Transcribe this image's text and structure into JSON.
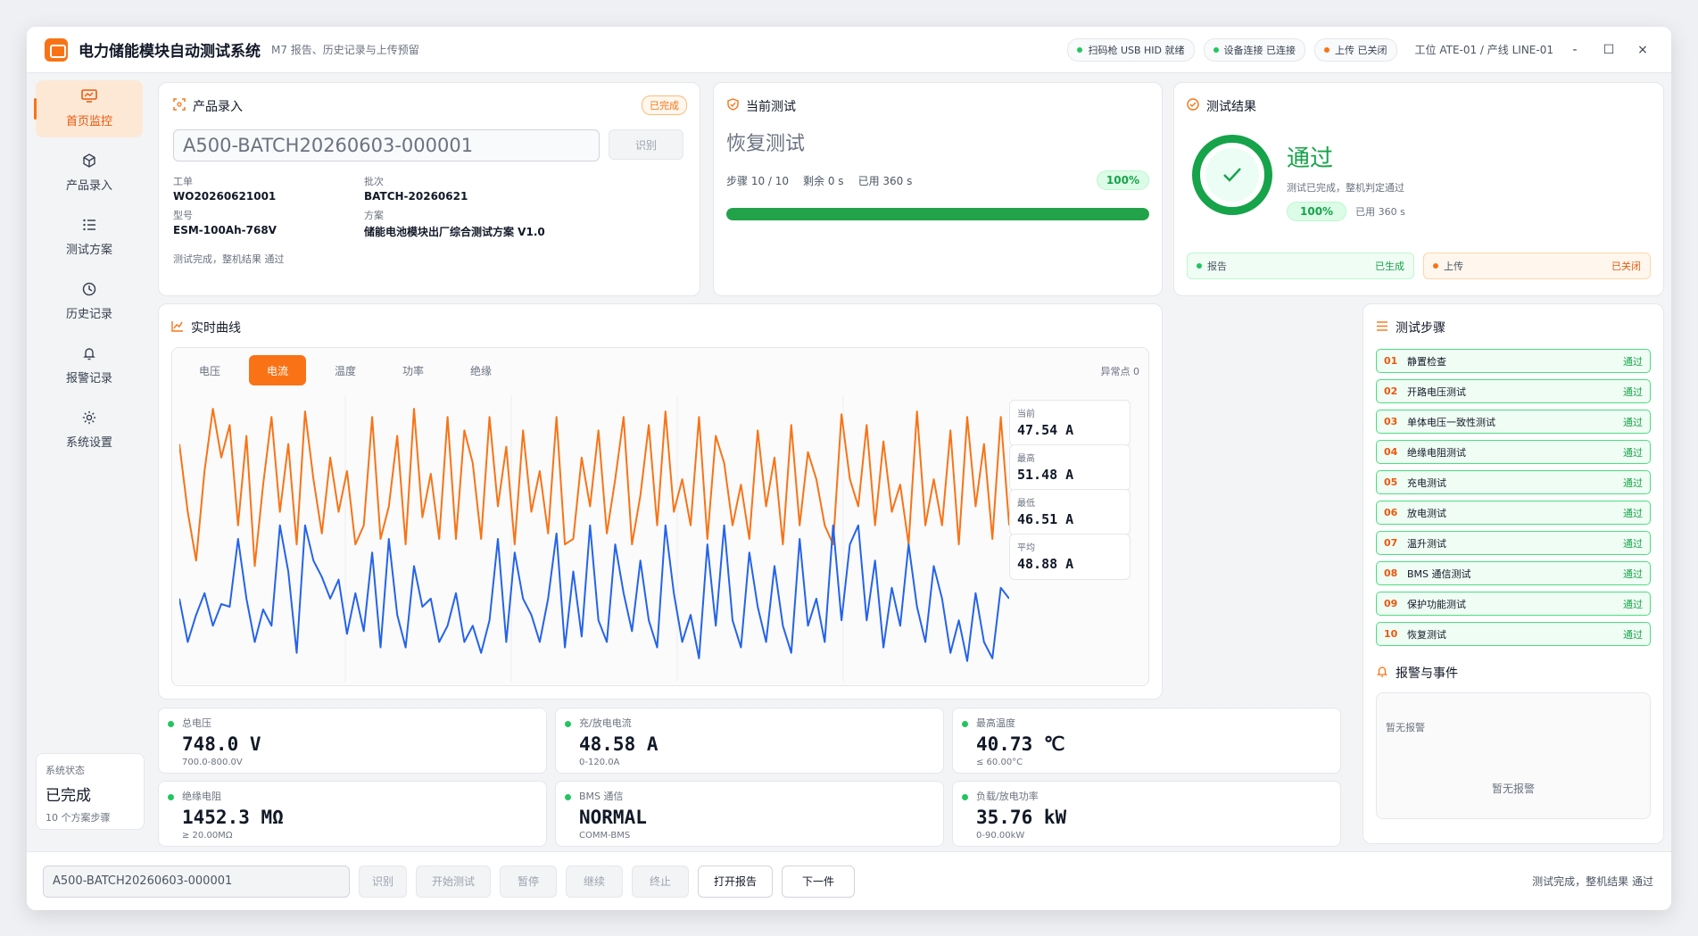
{
  "app": {
    "title": "电力储能模块自动测试系统",
    "subtitle": "M7 报告、历史记录与上传预留",
    "status_pills": [
      {
        "label": "扫码枪 USB HID 就绪",
        "color": "#22c55e"
      },
      {
        "label": "设备连接 已连接",
        "color": "#22c55e"
      },
      {
        "label": "上传 已关闭",
        "color": "#f97316"
      }
    ],
    "station": "工位 ATE-01 / 产线 LINE-01",
    "window_buttons": [
      "-",
      "☐",
      "×"
    ]
  },
  "sidebar": {
    "items": [
      {
        "label": "首页监控",
        "icon": "monitor-icon",
        "active": true
      },
      {
        "label": "产品录入",
        "icon": "cube-icon",
        "active": false
      },
      {
        "label": "测试方案",
        "icon": "list-icon",
        "active": false
      },
      {
        "label": "历史记录",
        "icon": "clock-icon",
        "active": false
      },
      {
        "label": "报警记录",
        "icon": "bell-icon",
        "active": false
      },
      {
        "label": "系统设置",
        "icon": "gear-icon",
        "active": false
      }
    ],
    "status": {
      "label": "系统状态",
      "value": "已完成",
      "sub": "10 个方案步骤"
    }
  },
  "product": {
    "title": "产品录入",
    "badge": "已完成",
    "barcode": "A500-BATCH20260603-000001",
    "identify_label": "识别",
    "fields": [
      {
        "key": "工单",
        "value": "WO20260621001"
      },
      {
        "key": "批次",
        "value": "BATCH-20260621"
      },
      {
        "key": "型号",
        "value": "ESM-100Ah-768V"
      },
      {
        "key": "方案",
        "value": "储能电池模块出厂综合测试方案 V1.0"
      }
    ],
    "note": "测试完成，整机结果 通过"
  },
  "current": {
    "title": "当前测试",
    "name": "恢复测试",
    "step": "步骤 10 / 10",
    "remaining": "剩余 0 s",
    "used": "已用 360 s",
    "percent_label": "100%",
    "progress": 1.0
  },
  "result": {
    "title": "测试结果",
    "verdict": "通过",
    "desc": "测试已完成，整机判定通过",
    "percent_label": "100%",
    "used": "已用 360 s",
    "report_label": "报告",
    "report_status": "已生成",
    "upload_label": "上传",
    "upload_status": "已关闭"
  },
  "curve": {
    "title": "实时曲线",
    "tabs": [
      "电压",
      "电流",
      "温度",
      "功率",
      "绝缘"
    ],
    "active_tab": 1,
    "anomaly": "异常点 0",
    "stats": [
      {
        "key": "当前",
        "value": "47.54 A"
      },
      {
        "key": "最高",
        "value": "51.48 A"
      },
      {
        "key": "最低",
        "value": "46.51 A"
      },
      {
        "key": "平均",
        "value": "48.88 A"
      }
    ]
  },
  "chart_data": {
    "type": "line",
    "series": [
      {
        "color": "#f97316",
        "values": [
          0.85,
          0.6,
          0.42,
          0.75,
          0.98,
          0.8,
          0.92,
          0.55,
          0.88,
          0.4,
          0.7,
          0.95,
          0.6,
          0.85,
          0.48,
          0.97,
          0.72,
          0.52,
          0.8,
          0.6,
          0.75,
          0.48,
          0.55,
          0.95,
          0.5,
          0.62,
          0.88,
          0.48,
          0.98,
          0.58,
          0.74,
          0.5,
          0.95,
          0.5,
          0.9,
          0.78,
          0.5,
          0.95,
          0.62,
          0.84,
          0.48,
          0.9,
          0.6,
          0.75,
          0.52,
          0.95,
          0.48,
          0.5,
          0.8,
          0.62,
          0.9,
          0.52,
          0.72,
          0.95,
          0.48,
          0.66,
          0.92,
          0.55,
          0.97,
          0.6,
          0.72,
          0.55,
          0.95,
          0.5,
          0.88,
          0.78,
          0.55,
          0.7,
          0.5,
          0.9,
          0.62,
          0.8,
          0.48,
          0.92,
          0.55,
          0.82,
          0.72,
          0.55,
          0.48,
          0.96,
          0.72,
          0.62,
          0.92,
          0.55,
          0.86,
          0.6,
          0.7,
          0.48,
          0.97,
          0.55,
          0.72,
          0.55,
          0.9,
          0.48,
          0.95,
          0.62,
          0.85,
          0.5,
          0.95,
          0.55
        ]
      },
      {
        "color": "#2563eb",
        "values": [
          0.28,
          0.12,
          0.22,
          0.3,
          0.18,
          0.26,
          0.25,
          0.5,
          0.28,
          0.12,
          0.24,
          0.18,
          0.55,
          0.38,
          0.08,
          0.55,
          0.42,
          0.36,
          0.28,
          0.35,
          0.15,
          0.3,
          0.16,
          0.45,
          0.1,
          0.5,
          0.22,
          0.1,
          0.4,
          0.25,
          0.28,
          0.12,
          0.18,
          0.3,
          0.12,
          0.18,
          0.08,
          0.2,
          0.5,
          0.12,
          0.45,
          0.28,
          0.22,
          0.12,
          0.28,
          0.52,
          0.1,
          0.38,
          0.14,
          0.55,
          0.2,
          0.12,
          0.48,
          0.3,
          0.16,
          0.42,
          0.2,
          0.1,
          0.55,
          0.3,
          0.12,
          0.22,
          0.06,
          0.48,
          0.18,
          0.55,
          0.2,
          0.1,
          0.45,
          0.25,
          0.12,
          0.4,
          0.18,
          0.08,
          0.5,
          0.18,
          0.28,
          0.12,
          0.55,
          0.2,
          0.48,
          0.55,
          0.2,
          0.42,
          0.1,
          0.32,
          0.18,
          0.48,
          0.25,
          0.12,
          0.4,
          0.28,
          0.08,
          0.2,
          0.05,
          0.3,
          0.12,
          0.06,
          0.32,
          0.28
        ]
      }
    ]
  },
  "metrics": [
    {
      "label": "总电压",
      "value": "748.0 V",
      "range": "700.0-800.0V"
    },
    {
      "label": "充/放电电流",
      "value": "48.58 A",
      "range": "0-120.0A"
    },
    {
      "label": "最高温度",
      "value": "40.73 ℃",
      "range": "≤ 60.00°C"
    },
    {
      "label": "绝缘电阻",
      "value": "1452.3 MΩ",
      "range": "≥ 20.00MΩ"
    },
    {
      "label": "BMS 通信",
      "value": "NORMAL",
      "range": "COMM-BMS"
    },
    {
      "label": "负载/放电功率",
      "value": "35.76 kW",
      "range": "0-90.00kW"
    }
  ],
  "steps": {
    "title": "测试步骤",
    "items": [
      {
        "no": "01",
        "name": "静置检查",
        "status": "通过"
      },
      {
        "no": "02",
        "name": "开路电压测试",
        "status": "通过"
      },
      {
        "no": "03",
        "name": "单体电压一致性测试",
        "status": "通过"
      },
      {
        "no": "04",
        "name": "绝缘电阻测试",
        "status": "通过"
      },
      {
        "no": "05",
        "name": "充电测试",
        "status": "通过"
      },
      {
        "no": "06",
        "name": "放电测试",
        "status": "通过"
      },
      {
        "no": "07",
        "name": "温升测试",
        "status": "通过"
      },
      {
        "no": "08",
        "name": "BMS 通信测试",
        "status": "通过"
      },
      {
        "no": "09",
        "name": "保护功能测试",
        "status": "通过"
      },
      {
        "no": "10",
        "name": "恢复测试",
        "status": "通过"
      }
    ]
  },
  "alarms": {
    "title": "报警与事件",
    "text1": "暂无报警",
    "text2": "暂无报警"
  },
  "bottom": {
    "barcode": "A500-BATCH20260603-000001",
    "buttons": [
      {
        "label": "识别",
        "enabled": false
      },
      {
        "label": "开始测试",
        "enabled": false
      },
      {
        "label": "暂停",
        "enabled": false
      },
      {
        "label": "继续",
        "enabled": false
      },
      {
        "label": "终止",
        "enabled": false
      },
      {
        "label": "打开报告",
        "enabled": true
      },
      {
        "label": "下一件",
        "enabled": true
      }
    ],
    "status": "测试完成，整机结果 通过"
  }
}
